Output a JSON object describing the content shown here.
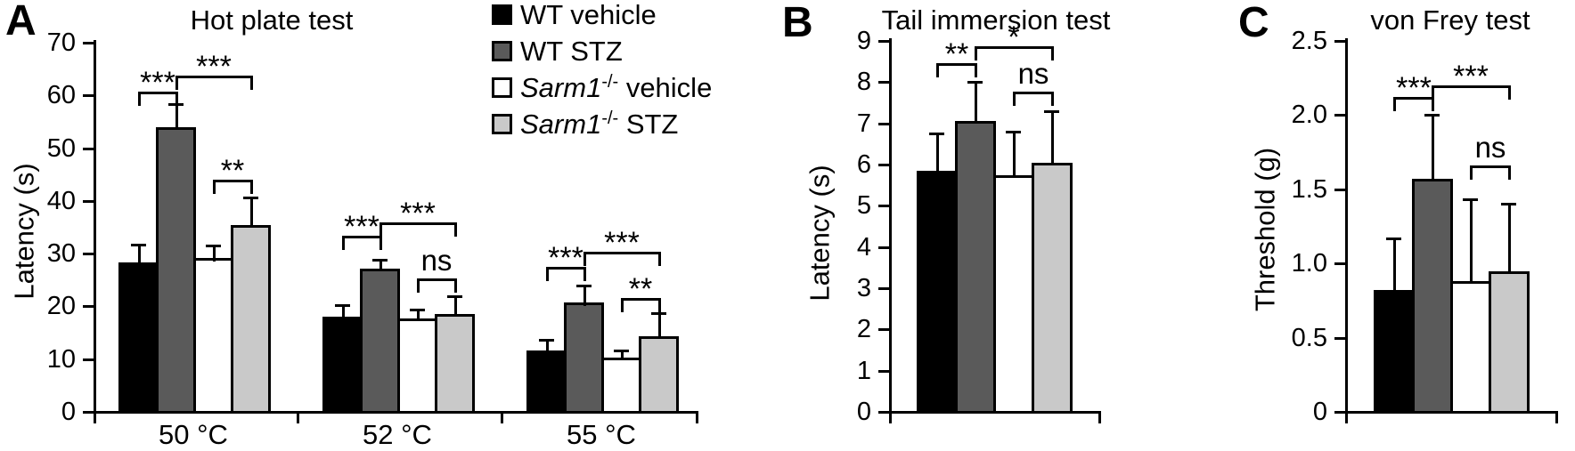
{
  "figure": {
    "background": "#ffffff"
  },
  "colors": {
    "bar_fills": [
      "#000000",
      "#5a5a5a",
      "#ffffff",
      "#c9c9c9"
    ],
    "bar_outline": "#000000",
    "axis": "#000000"
  },
  "legend": {
    "position": "top, right of panel A",
    "items": [
      {
        "label": "WT vehicle",
        "name_italic": "",
        "sup": "",
        "rest": "WT vehicle",
        "fill": "#000000"
      },
      {
        "label": "WT STZ",
        "name_italic": "",
        "sup": "",
        "rest": "WT STZ",
        "fill": "#5a5a5a"
      },
      {
        "label": "Sarm1-/- vehicle",
        "name_italic": "Sarm1",
        "sup": "-/-",
        "rest": " vehicle",
        "fill": "#ffffff"
      },
      {
        "label": "Sarm1-/- STZ",
        "name_italic": "Sarm1",
        "sup": "-/-",
        "rest": " STZ",
        "fill": "#c9c9c9"
      }
    ]
  },
  "chart_data": [
    {
      "panel_letter": "A",
      "type": "bar",
      "title": "Hot plate test",
      "xlabel": "",
      "ylabel": "Latency (s)",
      "ylim": [
        0,
        70
      ],
      "grid": false,
      "ytick_values": [
        0,
        10,
        20,
        30,
        40,
        50,
        60,
        70
      ],
      "ytick_labels": [
        "0",
        "10",
        "20",
        "30",
        "40",
        "50",
        "60",
        "70"
      ],
      "categories": [
        "50 °C",
        "52 °C",
        "55 °C"
      ],
      "series": [
        {
          "name": "WT vehicle",
          "values": [
            28.3,
            18.0,
            11.6
          ],
          "errors": [
            3.4,
            2.2,
            2.1
          ]
        },
        {
          "name": "WT STZ",
          "values": [
            54.0,
            27.2,
            20.7
          ],
          "errors": [
            4.3,
            1.7,
            3.3
          ]
        },
        {
          "name": "Sarm1-/- vehicle",
          "values": [
            29.1,
            17.7,
            10.3
          ],
          "errors": [
            2.5,
            1.7,
            1.3
          ]
        },
        {
          "name": "Sarm1-/- STZ",
          "values": [
            35.4,
            18.6,
            14.4
          ],
          "errors": [
            5.3,
            3.3,
            4.4
          ]
        }
      ],
      "significance": [
        {
          "category": 0,
          "from": 0,
          "to": 1,
          "label": "***",
          "y": 60.7
        },
        {
          "category": 0,
          "from": 1,
          "to": 3,
          "label": "***",
          "y": 63.7
        },
        {
          "category": 0,
          "from": 2,
          "to": 3,
          "label": "**",
          "y": 44.0
        },
        {
          "category": 1,
          "from": 0,
          "to": 1,
          "label": "***",
          "y": 33.4
        },
        {
          "category": 1,
          "from": 1,
          "to": 3,
          "label": "***",
          "y": 35.9
        },
        {
          "category": 1,
          "from": 2,
          "to": 3,
          "label": "ns",
          "y": 25.3
        },
        {
          "category": 2,
          "from": 0,
          "to": 1,
          "label": "***",
          "y": 27.5
        },
        {
          "category": 2,
          "from": 1,
          "to": 3,
          "label": "***",
          "y": 30.4
        },
        {
          "category": 2,
          "from": 2,
          "to": 3,
          "label": "**",
          "y": 21.6
        }
      ]
    },
    {
      "panel_letter": "B",
      "type": "bar",
      "title": "Tail immersion test",
      "xlabel": "",
      "ylabel": "Latency (s)",
      "ylim": [
        0,
        9
      ],
      "grid": false,
      "ytick_values": [
        0,
        1,
        2,
        3,
        4,
        5,
        6,
        7,
        8,
        9
      ],
      "ytick_labels": [
        "0",
        "1",
        "2",
        "3",
        "4",
        "5",
        "6",
        "7",
        "8",
        "9"
      ],
      "categories": [
        ""
      ],
      "series": [
        {
          "name": "WT vehicle",
          "values": [
            5.85
          ],
          "errors": [
            0.9
          ]
        },
        {
          "name": "WT STZ",
          "values": [
            7.05
          ],
          "errors": [
            0.95
          ]
        },
        {
          "name": "Sarm1-/- vehicle",
          "values": [
            5.75
          ],
          "errors": [
            1.05
          ]
        },
        {
          "name": "Sarm1-/- STZ",
          "values": [
            6.05
          ],
          "errors": [
            1.25
          ]
        }
      ],
      "significance": [
        {
          "category": 0,
          "from": 0,
          "to": 1,
          "label": "**",
          "y": 8.47
        },
        {
          "category": 0,
          "from": 1,
          "to": 3,
          "label": "*",
          "y": 8.86
        },
        {
          "category": 0,
          "from": 2,
          "to": 3,
          "label": "ns",
          "y": 7.76
        }
      ]
    },
    {
      "panel_letter": "C",
      "type": "bar",
      "title": "von Frey test",
      "xlabel": "",
      "ylabel": "Threshold (g)",
      "ylim": [
        0,
        2.5
      ],
      "grid": false,
      "ytick_values": [
        0,
        0.5,
        1,
        1.5,
        2,
        2.5
      ],
      "ytick_labels": [
        "0",
        "0.5",
        "1.0",
        "1.5",
        "2.0",
        "2.5"
      ],
      "categories": [
        ""
      ],
      "series": [
        {
          "name": "WT vehicle",
          "values": [
            0.82
          ],
          "errors": [
            0.35
          ]
        },
        {
          "name": "WT STZ",
          "values": [
            1.57
          ],
          "errors": [
            0.43
          ]
        },
        {
          "name": "Sarm1-/- vehicle",
          "values": [
            0.88
          ],
          "errors": [
            0.55
          ]
        },
        {
          "name": "Sarm1-/- STZ",
          "values": [
            0.95
          ],
          "errors": [
            0.45
          ]
        }
      ],
      "significance": [
        {
          "category": 0,
          "from": 0,
          "to": 1,
          "label": "***",
          "y": 2.12
        },
        {
          "category": 0,
          "from": 1,
          "to": 3,
          "label": "***",
          "y": 2.2
        },
        {
          "category": 0,
          "from": 2,
          "to": 3,
          "label": "ns",
          "y": 1.66
        }
      ]
    }
  ]
}
